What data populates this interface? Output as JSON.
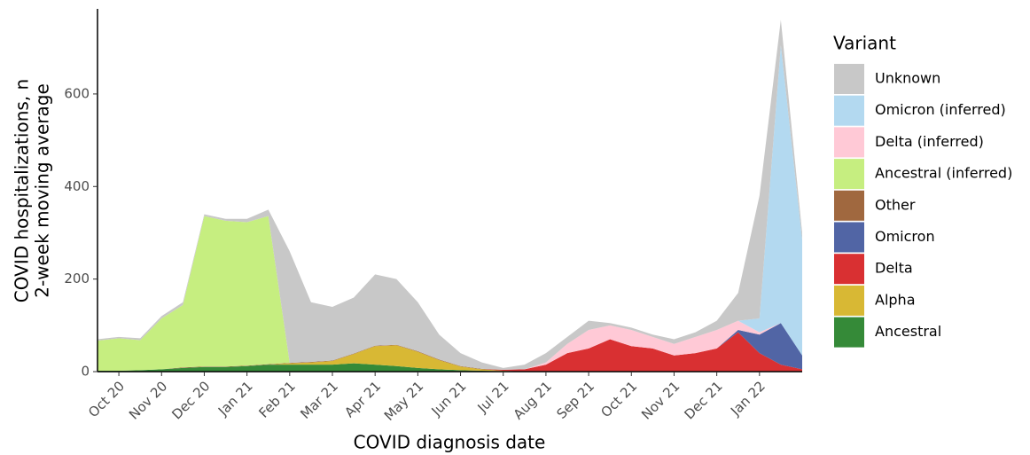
{
  "chart_data": {
    "type": "stacked_area",
    "x_label": "COVID diagnosis date",
    "y_label": [
      "COVID hospitalizations, n",
      "2-week moving average"
    ],
    "legend_title": "Variant",
    "legend": "right",
    "categories": [
      null,
      "Oct 20",
      null,
      "Nov 20",
      null,
      "Dec 20",
      null,
      "Jan 21",
      null,
      "Feb 21",
      null,
      "Mar 21",
      null,
      "Apr 21",
      null,
      "May 21",
      null,
      "Jun 21",
      null,
      "Jul 21",
      null,
      "Aug 21",
      null,
      "Sep 21",
      null,
      "Oct 21",
      null,
      "Nov 21",
      null,
      "Dec 21",
      null,
      "Jan 22",
      null,
      null
    ],
    "ylim": [
      0,
      780
    ],
    "yticks": [
      0,
      200,
      400,
      600
    ],
    "series": [
      {
        "name": "Ancestral",
        "color": "#358a38",
        "values": [
          2,
          2,
          3,
          5,
          8,
          10,
          10,
          12,
          15,
          15,
          15,
          15,
          18,
          15,
          12,
          8,
          5,
          3,
          2,
          1,
          0,
          0,
          0,
          0,
          0,
          0,
          0,
          0,
          0,
          0,
          0,
          0,
          0,
          0
        ]
      },
      {
        "name": "Alpha",
        "color": "#d8b834",
        "values": [
          0,
          0,
          0,
          0,
          0,
          0,
          0,
          0,
          0,
          3,
          5,
          8,
          20,
          40,
          45,
          35,
          20,
          8,
          3,
          1,
          0,
          0,
          0,
          0,
          0,
          0,
          0,
          0,
          0,
          0,
          0,
          0,
          0,
          0
        ]
      },
      {
        "name": "Delta",
        "color": "#d93032",
        "values": [
          0,
          0,
          0,
          0,
          0,
          0,
          0,
          0,
          0,
          0,
          0,
          0,
          0,
          0,
          0,
          0,
          0,
          0,
          0,
          2,
          5,
          15,
          40,
          50,
          70,
          55,
          50,
          35,
          40,
          50,
          85,
          40,
          15,
          5
        ]
      },
      {
        "name": "Omicron",
        "color": "#5165a5",
        "values": [
          0,
          0,
          0,
          0,
          0,
          0,
          0,
          0,
          0,
          0,
          0,
          0,
          0,
          0,
          0,
          0,
          0,
          0,
          0,
          0,
          0,
          0,
          0,
          0,
          0,
          0,
          0,
          0,
          0,
          0,
          5,
          40,
          90,
          30
        ]
      },
      {
        "name": "Other",
        "color": "#a0683f",
        "values": [
          0,
          0,
          0,
          0,
          1,
          1,
          1,
          1,
          1,
          1,
          1,
          1,
          1,
          1,
          1,
          1,
          1,
          1,
          1,
          0,
          0,
          0,
          0,
          0,
          0,
          0,
          0,
          0,
          0,
          0,
          0,
          0,
          0,
          0
        ]
      },
      {
        "name": "Ancestral (inferred)",
        "color": "#c6ee80",
        "values": [
          65,
          70,
          65,
          110,
          135,
          325,
          315,
          310,
          320,
          0,
          0,
          0,
          0,
          0,
          0,
          0,
          0,
          0,
          0,
          0,
          0,
          0,
          0,
          0,
          0,
          0,
          0,
          0,
          0,
          0,
          0,
          0,
          0,
          0
        ]
      },
      {
        "name": "Delta (inferred)",
        "color": "#ffc9d6",
        "values": [
          0,
          0,
          0,
          0,
          0,
          0,
          0,
          0,
          0,
          0,
          0,
          0,
          0,
          0,
          0,
          0,
          0,
          0,
          0,
          0,
          0,
          5,
          20,
          40,
          30,
          35,
          25,
          25,
          35,
          40,
          20,
          5,
          0,
          0
        ]
      },
      {
        "name": "Omicron (inferred)",
        "color": "#b3d9f0",
        "values": [
          0,
          0,
          0,
          0,
          0,
          0,
          0,
          0,
          0,
          0,
          0,
          0,
          0,
          0,
          0,
          0,
          0,
          0,
          0,
          0,
          0,
          0,
          0,
          0,
          0,
          0,
          0,
          0,
          0,
          0,
          0,
          30,
          600,
          250
        ]
      },
      {
        "name": "Unknown",
        "color": "#c8c8c8",
        "values": [
          3,
          3,
          4,
          5,
          6,
          4,
          4,
          7,
          14,
          241,
          129,
          116,
          121,
          154,
          142,
          106,
          54,
          28,
          14,
          4,
          10,
          20,
          15,
          20,
          5,
          5,
          5,
          10,
          10,
          20,
          60,
          265,
          55,
          15
        ]
      }
    ]
  }
}
